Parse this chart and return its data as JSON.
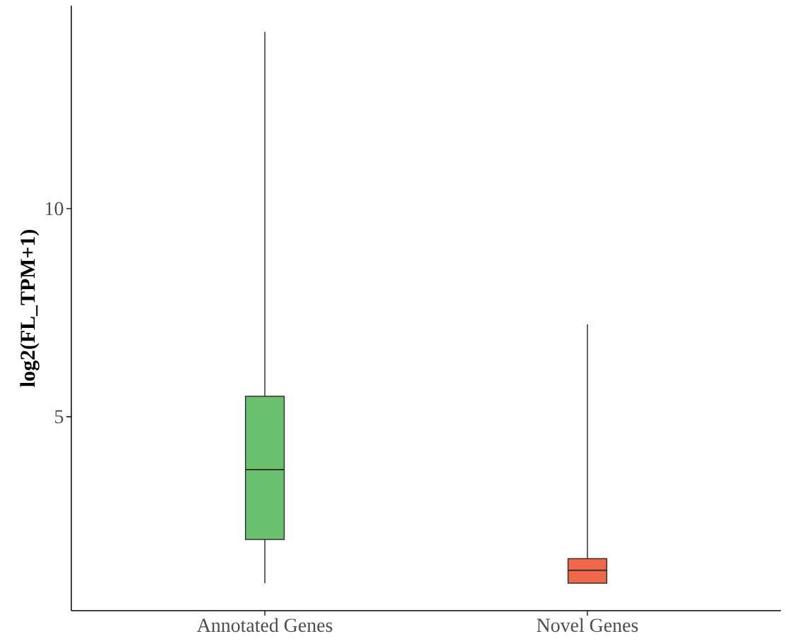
{
  "chart_data": {
    "type": "box",
    "ylabel": "log2(FL_TPM+1)",
    "categories": [
      "Annotated Genes",
      "Novel Genes"
    ],
    "colors": [
      "#6cc16e",
      "#f0674a"
    ],
    "boxes": [
      {
        "low": 1.0,
        "q1": 2.05,
        "median": 3.73,
        "q3": 5.49,
        "high": 14.25
      },
      {
        "low": 1.0,
        "q1": 1.0,
        "median": 1.31,
        "q3": 1.59,
        "high": 7.22
      }
    ],
    "ylim": [
      0.34,
      14.88
    ],
    "yticks": [
      5,
      10
    ],
    "grid": false
  }
}
